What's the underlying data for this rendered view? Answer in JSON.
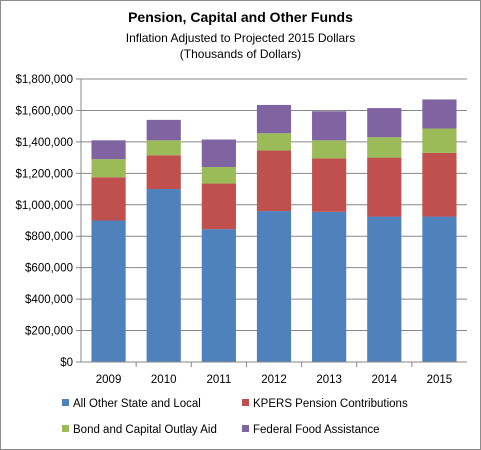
{
  "chart_data": {
    "type": "bar",
    "stacked": true,
    "title": "Pension, Capital and Other Funds",
    "subtitle_lines": [
      "Inflation Adjusted to  Projected 2015 Dollars",
      "(Thousands of Dollars)"
    ],
    "categories": [
      "2009",
      "2010",
      "2011",
      "2012",
      "2013",
      "2014",
      "2015"
    ],
    "y_ticks": [
      "$0",
      "$200,000",
      "$400,000",
      "$600,000",
      "$800,000",
      "$1,000,000",
      "$1,200,000",
      "$1,400,000",
      "$1,600,000",
      "$1,800,000"
    ],
    "ylim": [
      0,
      1800000
    ],
    "grid": true,
    "legend_position": "bottom",
    "series": [
      {
        "name": "All Other State and Local",
        "color": "#4f81bd",
        "values": [
          900000,
          1100000,
          845000,
          960000,
          955000,
          925000,
          925000
        ]
      },
      {
        "name": "KPERS Pension Contributions",
        "color": "#c0504d",
        "values": [
          275000,
          215000,
          290000,
          385000,
          340000,
          375000,
          405000
        ]
      },
      {
        "name": "Bond and Capital Outlay Aid",
        "color": "#9bbb59",
        "values": [
          115000,
          95000,
          105000,
          110000,
          115000,
          130000,
          155000
        ]
      },
      {
        "name": "Federal Food Assistance",
        "color": "#8064a2",
        "values": [
          120000,
          130000,
          175000,
          180000,
          185000,
          185000,
          185000
        ]
      }
    ]
  }
}
